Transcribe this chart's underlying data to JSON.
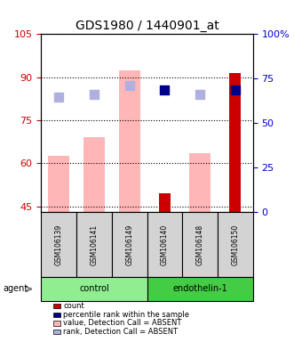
{
  "title": "GDS1980 / 1440901_at",
  "samples": [
    "GSM106139",
    "GSM106141",
    "GSM106149",
    "GSM106140",
    "GSM106148",
    "GSM106150"
  ],
  "groups": [
    "control",
    "control",
    "control",
    "endothelin-1",
    "endothelin-1",
    "endothelin-1"
  ],
  "group_labels": [
    "control",
    "endothelin-1"
  ],
  "group_colors": [
    "#90ee90",
    "#00cc00"
  ],
  "ylim_left": [
    43,
    105
  ],
  "ylim_right": [
    0,
    100
  ],
  "yticks_left": [
    45,
    60,
    75,
    90,
    105
  ],
  "yticks_right": [
    0,
    25,
    50,
    75,
    100
  ],
  "ytick_labels_right": [
    "0",
    "25",
    "50",
    "75",
    "100%"
  ],
  "pink_bars": [
    62.5,
    69.0,
    92.5,
    0,
    63.5,
    0
  ],
  "red_bars": [
    0,
    0,
    0,
    49.5,
    0,
    91.5
  ],
  "blue_dots_y": [
    83.5,
    84.5,
    87.0,
    85.5,
    84.5,
    85.5
  ],
  "blue_dots_present": [
    false,
    false,
    false,
    true,
    false,
    true
  ],
  "lavender_dots_y": [
    83.0,
    84.0,
    87.0,
    0,
    84.0,
    0
  ],
  "pink_color": "#ffb6b6",
  "red_color": "#cc0000",
  "blue_color": "#00008b",
  "lavender_color": "#b0b0e0",
  "ylabel_left_color": "#cc0000",
  "ylabel_right_color": "#0000cc",
  "legend_items": [
    {
      "color": "#cc0000",
      "label": "count"
    },
    {
      "color": "#00008b",
      "label": "percentile rank within the sample"
    },
    {
      "color": "#ffb6b6",
      "label": "value, Detection Call = ABSENT"
    },
    {
      "color": "#b0b0e0",
      "label": "rank, Detection Call = ABSENT"
    }
  ],
  "agent_label": "agent",
  "bar_width": 0.6,
  "dot_size": 60,
  "background_plot": "#ffffff",
  "background_sample": "#d3d3d3",
  "grid_color": "#000000",
  "grid_style": "dotted"
}
